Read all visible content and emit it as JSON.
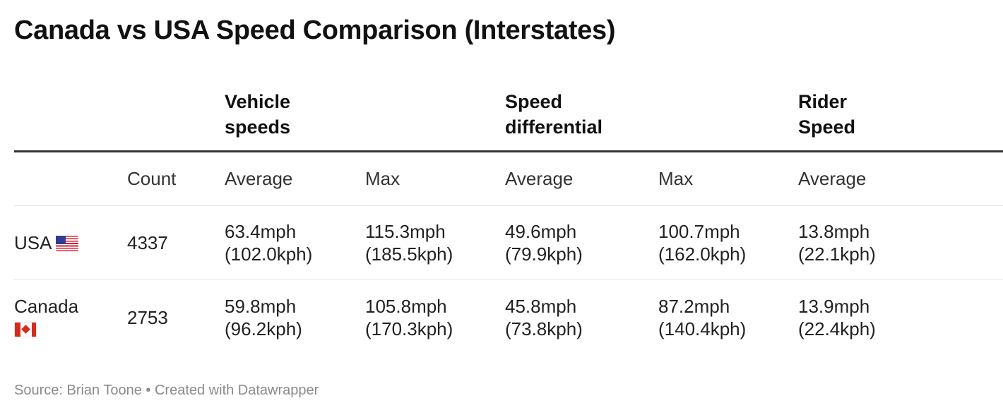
{
  "title": "Canada vs USA Speed Comparison (Interstates)",
  "source": "Source: Brian Toone • Created with Datawrapper",
  "chart_data": {
    "type": "table",
    "title": "Canada vs USA Speed Comparison (Interstates)",
    "column_groups": [
      {
        "label_line1": "Vehicle",
        "label_line2": "speeds"
      },
      {
        "label_line1": "Speed",
        "label_line2": "differential"
      },
      {
        "label_line1": "Rider",
        "label_line2": "Speed"
      }
    ],
    "columns": [
      "",
      "Count",
      "Average",
      "Max",
      "Average",
      "Max",
      "Average"
    ],
    "rows": [
      {
        "country": "USA",
        "flag": "us-flag-icon",
        "count": "4337",
        "vehicle_avg": {
          "mph": "63.4mph",
          "kph": "(102.0kph)"
        },
        "vehicle_max": {
          "mph": "115.3mph",
          "kph": "(185.5kph)"
        },
        "diff_avg": {
          "mph": "49.6mph",
          "kph": "(79.9kph)"
        },
        "diff_max": {
          "mph": "100.7mph",
          "kph": "(162.0kph)"
        },
        "rider_avg": {
          "mph": "13.8mph",
          "kph": "(22.1kph)"
        }
      },
      {
        "country": "Canada",
        "flag": "canada-flag-icon",
        "count": "2753",
        "vehicle_avg": {
          "mph": "59.8mph",
          "kph": "(96.2kph)"
        },
        "vehicle_max": {
          "mph": "105.8mph",
          "kph": "(170.3kph)"
        },
        "diff_avg": {
          "mph": "45.8mph",
          "kph": "(73.8kph)"
        },
        "diff_max": {
          "mph": "87.2mph",
          "kph": "(140.4kph)"
        },
        "rider_avg": {
          "mph": "13.9mph",
          "kph": "(22.4kph)"
        }
      }
    ]
  }
}
